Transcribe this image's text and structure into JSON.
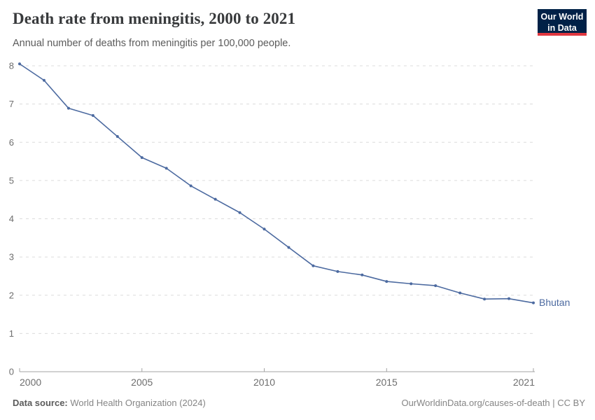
{
  "header": {
    "title": "Death rate from meningitis, 2000 to 2021",
    "subtitle": "Annual number of deaths from meningitis per 100,000 people.",
    "logo": {
      "line1": "Our World",
      "line2": "in Data",
      "bg_color": "#002147",
      "accent_color": "#e0373f"
    }
  },
  "chart_data": {
    "type": "line",
    "title": "Death rate from meningitis, 2000 to 2021",
    "subtitle": "Annual number of deaths from meningitis per 100,000 people.",
    "x": [
      2000,
      2001,
      2002,
      2003,
      2004,
      2005,
      2006,
      2007,
      2008,
      2009,
      2010,
      2011,
      2012,
      2013,
      2014,
      2015,
      2016,
      2017,
      2018,
      2019,
      2020,
      2021
    ],
    "series": [
      {
        "name": "Bhutan",
        "color": "#4c6aa0",
        "values": [
          8.05,
          7.62,
          6.89,
          6.7,
          6.15,
          5.6,
          5.32,
          4.86,
          4.51,
          4.16,
          3.73,
          3.25,
          2.77,
          2.62,
          2.53,
          2.36,
          2.3,
          2.25,
          2.06,
          1.9,
          1.91,
          1.8
        ]
      }
    ],
    "xlim": [
      2000,
      2021
    ],
    "ylim": [
      0,
      8
    ],
    "yticks": [
      0,
      1,
      2,
      3,
      4,
      5,
      6,
      7,
      8
    ],
    "xticks": [
      2000,
      2005,
      2010,
      2015,
      2021
    ],
    "grid": "horizontal-dashed",
    "legend": "end-of-line-label",
    "end_label": "Bhutan",
    "colors": {
      "grid": "#dcdcdc",
      "axis": "#a3a3a3",
      "tick_text": "#6e6e6e"
    }
  },
  "footer": {
    "datasource_label": "Data source:",
    "datasource_value": "World Health Organization (2024)",
    "right_text": "OurWorldinData.org/causes-of-death | CC BY"
  }
}
